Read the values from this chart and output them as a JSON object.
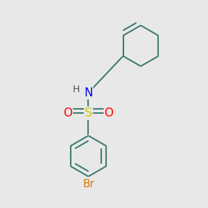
{
  "background_color": "#e8e8e8",
  "bond_color": "#3d7a6e",
  "bond_width": 1.5,
  "atom_colors": {
    "N": "#0000ee",
    "S": "#cccc00",
    "O": "#ff0000",
    "Br": "#dd7700",
    "H": "#555555"
  },
  "figsize": [
    3.0,
    3.0
  ],
  "dpi": 100,
  "xlim": [
    0,
    10
  ],
  "ylim": [
    0,
    10
  ]
}
